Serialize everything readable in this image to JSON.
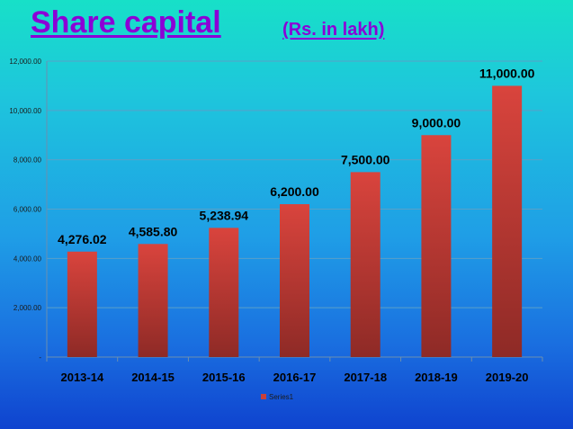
{
  "slide": {
    "title": "Share capital",
    "subtitle": "(Rs. in lakh)"
  },
  "chart_data": {
    "type": "bar",
    "categories": [
      "2013-14",
      "2014-15",
      "2015-16",
      "2016-17",
      "2017-18",
      "2018-19",
      "2019-20"
    ],
    "series": [
      {
        "name": "Series1",
        "values": [
          4276.02,
          4585.8,
          5238.94,
          6200.0,
          7500.0,
          9000.0,
          11000.0
        ],
        "labels": [
          "4,276.02",
          "4,585.80",
          "5,238.94",
          "6,200.00",
          "7,500.00",
          "9,000.00",
          "11,000.00"
        ],
        "color": "#c9403a"
      }
    ],
    "yticks": [
      0,
      2000,
      4000,
      6000,
      8000,
      10000,
      12000
    ],
    "ytick_labels": [
      "-",
      "2,000.00",
      "4,000.00",
      "6,000.00",
      "8,000.00",
      "10,000.00",
      "12,000.00"
    ],
    "ylim": [
      0,
      12000
    ],
    "grid": true,
    "legend": "bottom-center",
    "colors": {
      "bar": "#c9403a",
      "bar_dark": "#8e2a26",
      "grid": "#5aa0c8"
    }
  }
}
